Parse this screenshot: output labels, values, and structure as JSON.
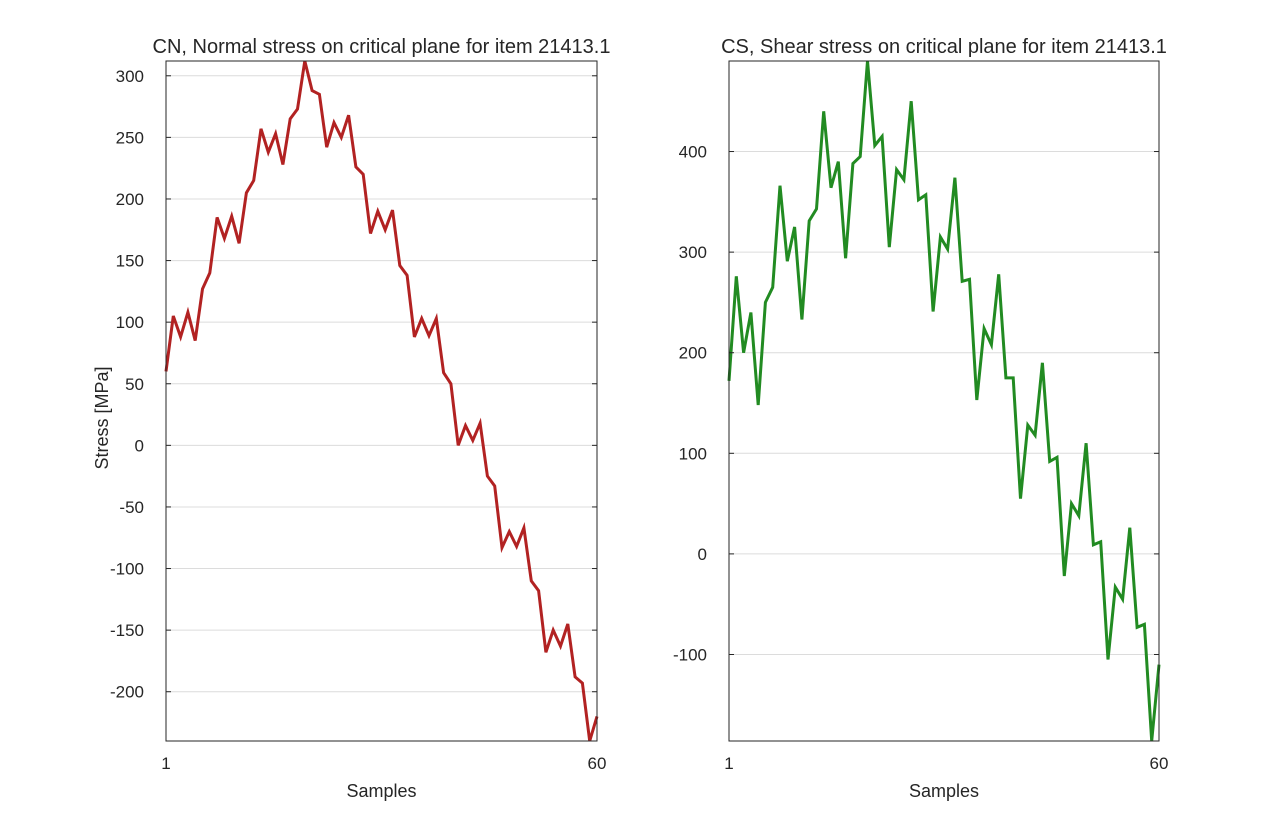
{
  "chart_data": [
    {
      "type": "line",
      "title": "CN, Normal stress on critical plane for item 21413.1",
      "xlabel": "Samples",
      "ylabel": "Stress [MPa]",
      "xlim": [
        1,
        60
      ],
      "ylim": [
        -240,
        312
      ],
      "xticks": [
        "1",
        "60"
      ],
      "yticks": [
        300,
        250,
        200,
        150,
        100,
        50,
        0,
        -50,
        -100,
        -150,
        -200
      ],
      "ytick_labels": [
        "300",
        "250",
        "200",
        "150",
        "100",
        "50",
        "0",
        "-50",
        "-100",
        "-150",
        "-200"
      ],
      "grid": true,
      "color": "#b22222",
      "series": [
        {
          "x": [
            1,
            2,
            3,
            4,
            5,
            6,
            7,
            8,
            9,
            10,
            11,
            12,
            13,
            14,
            15,
            16,
            17,
            18,
            19,
            20,
            21,
            22,
            23,
            24,
            25,
            26,
            27,
            28,
            29,
            30,
            31,
            32,
            33,
            34,
            35,
            36,
            37,
            38,
            39,
            40,
            41,
            42,
            43,
            44,
            45,
            46,
            47,
            48,
            49,
            50,
            51,
            52,
            53,
            54,
            55,
            56,
            57,
            58,
            59,
            60
          ],
          "values": [
            60,
            105,
            88,
            108,
            85,
            127,
            140,
            185,
            168,
            186,
            164,
            205,
            215,
            257,
            238,
            253,
            228,
            265,
            273,
            312,
            288,
            285,
            242,
            262,
            250,
            268,
            226,
            220,
            172,
            190,
            175,
            191,
            146,
            138,
            88,
            103,
            89,
            103,
            59,
            50,
            0,
            16,
            4,
            18,
            -25,
            -33,
            -83,
            -70,
            -82,
            -67,
            -110,
            -118,
            -168,
            -150,
            -163,
            -145,
            -188,
            -193,
            -240,
            -220
          ]
        }
      ]
    },
    {
      "type": "line",
      "title": "CS, Shear stress on critical plane for item 21413.1",
      "xlabel": "Samples",
      "ylabel": "",
      "xlim": [
        1,
        60
      ],
      "ylim": [
        -186,
        490
      ],
      "xticks": [
        "1",
        "60"
      ],
      "yticks": [
        400,
        300,
        200,
        100,
        0,
        -100
      ],
      "ytick_labels": [
        "400",
        "300",
        "200",
        "100",
        "0",
        "-100"
      ],
      "grid": true,
      "color": "#228b22",
      "series": [
        {
          "x": [
            1,
            2,
            3,
            4,
            5,
            6,
            7,
            8,
            9,
            10,
            11,
            12,
            13,
            14,
            15,
            16,
            17,
            18,
            19,
            20,
            21,
            22,
            23,
            24,
            25,
            26,
            27,
            28,
            29,
            30,
            31,
            32,
            33,
            34,
            35,
            36,
            37,
            38,
            39,
            40,
            41,
            42,
            43,
            44,
            45,
            46,
            47,
            48,
            49,
            50,
            51,
            52,
            53,
            54,
            55,
            56,
            57,
            58,
            59,
            60
          ],
          "values": [
            172,
            276,
            200,
            240,
            148,
            250,
            265,
            366,
            291,
            325,
            233,
            331,
            343,
            440,
            364,
            390,
            294,
            388,
            395,
            490,
            406,
            415,
            305,
            382,
            372,
            450,
            352,
            357,
            241,
            315,
            303,
            374,
            271,
            273,
            153,
            224,
            208,
            278,
            175,
            175,
            55,
            128,
            118,
            190,
            92,
            96,
            -22,
            50,
            38,
            110,
            9,
            12,
            -105,
            -33,
            -45,
            26,
            -73,
            -70,
            -186,
            -110
          ]
        }
      ]
    }
  ]
}
